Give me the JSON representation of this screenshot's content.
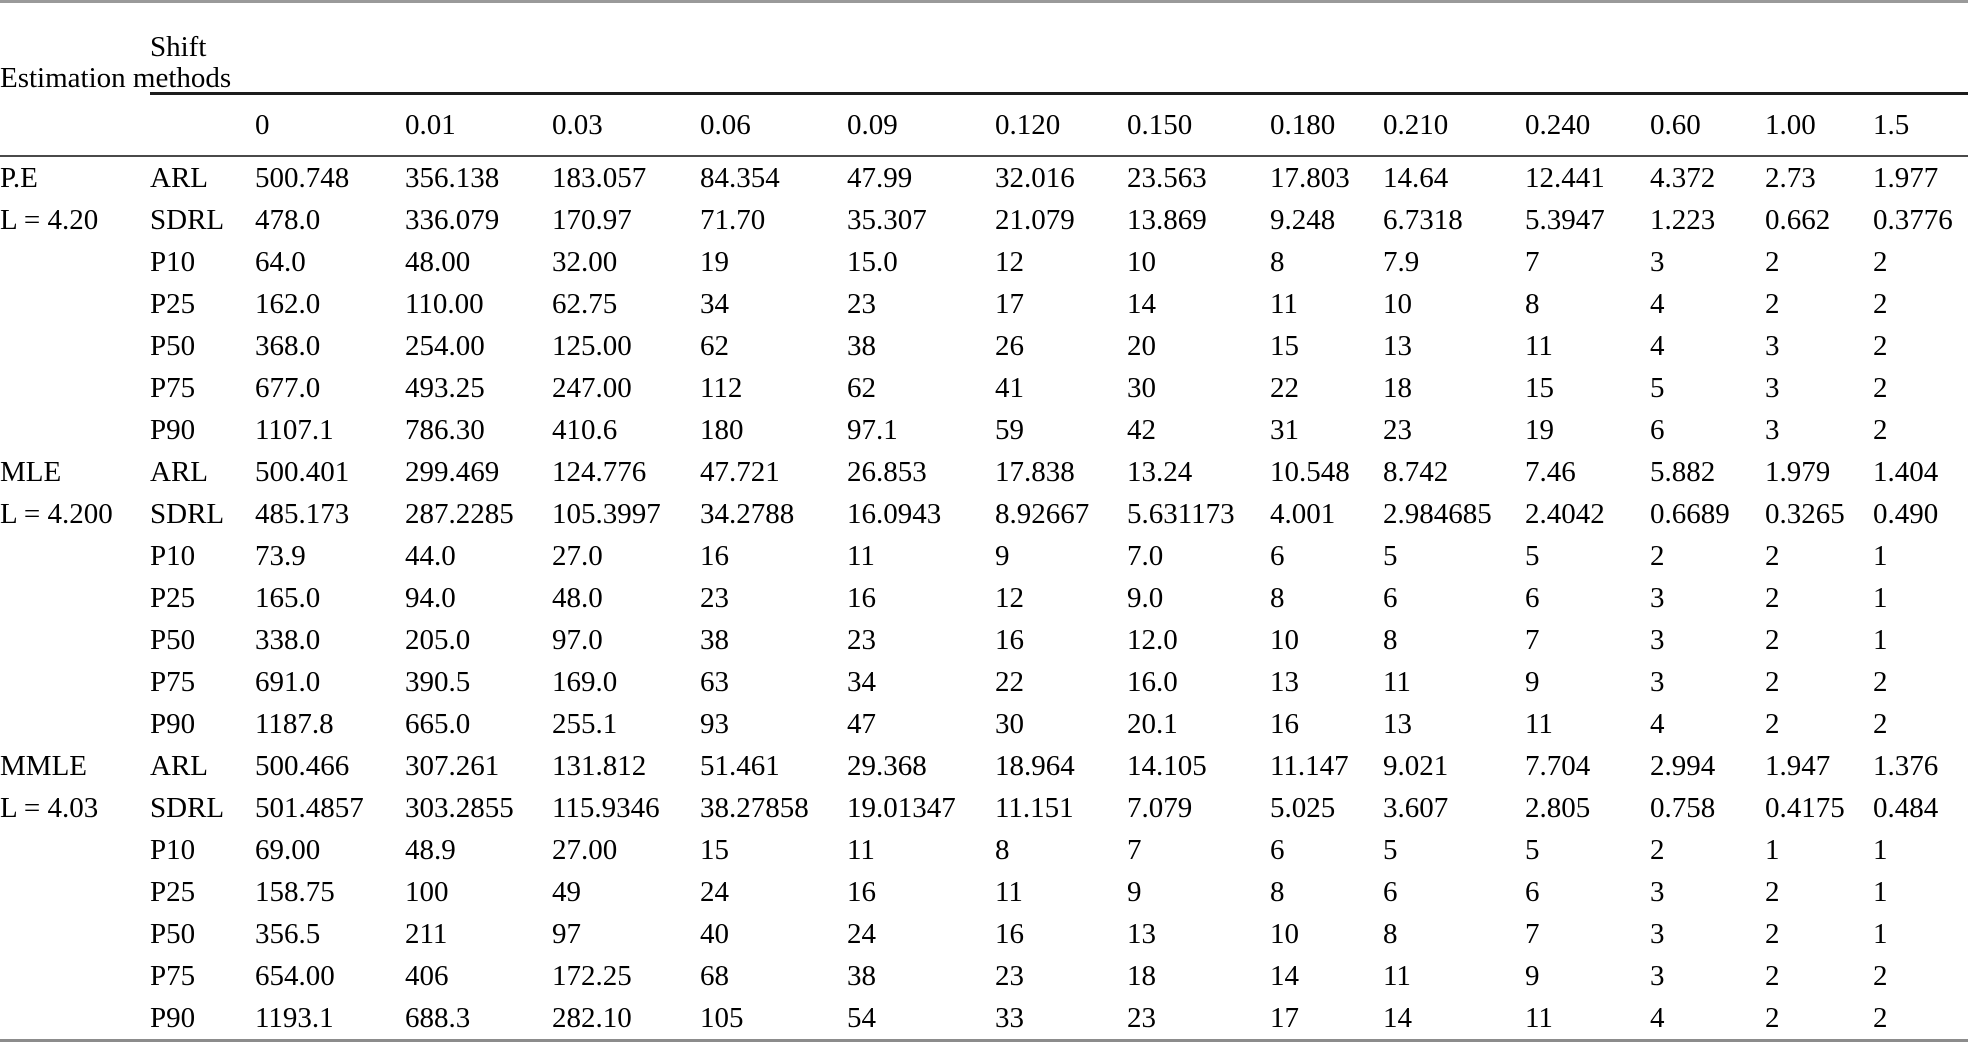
{
  "table": {
    "corner_header": "Estimation methods",
    "span_header": "Shift",
    "shift_columns": [
      "0",
      "0.01",
      "0.03",
      "0.06",
      "0.09",
      "0.120",
      "0.150",
      "0.180",
      "0.210",
      "0.240",
      "0.60",
      "1.00",
      "1.5"
    ],
    "groups": [
      {
        "method": "P.E",
        "limit_label": "L = 4.20",
        "rows": [
          {
            "stat": "ARL",
            "values": [
              "500.748",
              "356.138",
              "183.057",
              "84.354",
              "47.99",
              "32.016",
              "23.563",
              "17.803",
              "14.64",
              "12.441",
              "4.372",
              "2.73",
              "1.977"
            ]
          },
          {
            "stat": "SDRL",
            "values": [
              "478.0",
              "336.079",
              "170.97",
              "71.70",
              "35.307",
              "21.079",
              "13.869",
              "9.248",
              "6.7318",
              "5.3947",
              "1.223",
              "0.662",
              "0.3776"
            ]
          },
          {
            "stat": "P10",
            "values": [
              "64.0",
              "48.00",
              "32.00",
              "19",
              "15.0",
              "12",
              "10",
              "8",
              "7.9",
              "7",
              "3",
              "2",
              "2"
            ]
          },
          {
            "stat": "P25",
            "values": [
              "162.0",
              "110.00",
              "62.75",
              "34",
              "23",
              "17",
              "14",
              "11",
              "10",
              "8",
              "4",
              "2",
              "2"
            ]
          },
          {
            "stat": "P50",
            "values": [
              "368.0",
              "254.00",
              "125.00",
              "62",
              "38",
              "26",
              "20",
              "15",
              "13",
              "11",
              "4",
              "3",
              "2"
            ]
          },
          {
            "stat": "P75",
            "values": [
              "677.0",
              "493.25",
              "247.00",
              "112",
              "62",
              "41",
              "30",
              "22",
              "18",
              "15",
              "5",
              "3",
              "2"
            ]
          },
          {
            "stat": "P90",
            "values": [
              "1107.1",
              "786.30",
              "410.6",
              "180",
              "97.1",
              "59",
              "42",
              "31",
              "23",
              "19",
              "6",
              "3",
              "2"
            ]
          }
        ]
      },
      {
        "method": "MLE",
        "limit_label": "L = 4.200",
        "rows": [
          {
            "stat": "ARL",
            "values": [
              "500.401",
              "299.469",
              "124.776",
              "47.721",
              "26.853",
              "17.838",
              "13.24",
              "10.548",
              "8.742",
              "7.46",
              "5.882",
              "1.979",
              "1.404"
            ]
          },
          {
            "stat": "SDRL",
            "values": [
              "485.173",
              "287.2285",
              "105.3997",
              "34.2788",
              "16.0943",
              "8.92667",
              "5.631173",
              "4.001",
              "2.984685",
              "2.4042",
              "0.6689",
              "0.3265",
              "0.490"
            ]
          },
          {
            "stat": "P10",
            "values": [
              "73.9",
              "44.0",
              "27.0",
              "16",
              "11",
              "9",
              "7.0",
              "6",
              "5",
              "5",
              "2",
              "2",
              "1"
            ]
          },
          {
            "stat": "P25",
            "values": [
              "165.0",
              "94.0",
              "48.0",
              "23",
              "16",
              "12",
              "9.0",
              "8",
              "6",
              "6",
              "3",
              "2",
              "1"
            ]
          },
          {
            "stat": "P50",
            "values": [
              "338.0",
              "205.0",
              "97.0",
              "38",
              "23",
              "16",
              "12.0",
              "10",
              "8",
              "7",
              "3",
              "2",
              "1"
            ]
          },
          {
            "stat": "P75",
            "values": [
              "691.0",
              "390.5",
              "169.0",
              "63",
              "34",
              "22",
              "16.0",
              "13",
              "11",
              "9",
              "3",
              "2",
              "2"
            ]
          },
          {
            "stat": "P90",
            "values": [
              "1187.8",
              "665.0",
              "255.1",
              "93",
              "47",
              "30",
              "20.1",
              "16",
              "13",
              "11",
              "4",
              "2",
              "2"
            ]
          }
        ]
      },
      {
        "method": "MMLE",
        "limit_label": "L = 4.03",
        "rows": [
          {
            "stat": "ARL",
            "values": [
              "500.466",
              "307.261",
              "131.812",
              "51.461",
              "29.368",
              "18.964",
              "14.105",
              "11.147",
              "9.021",
              "7.704",
              "2.994",
              "1.947",
              "1.376"
            ]
          },
          {
            "stat": "SDRL",
            "values": [
              "501.4857",
              "303.2855",
              "115.9346",
              "38.27858",
              "19.01347",
              "11.151",
              "7.079",
              "5.025",
              "3.607",
              "2.805",
              "0.758",
              "0.4175",
              "0.484"
            ]
          },
          {
            "stat": "P10",
            "values": [
              "69.00",
              "48.9",
              "27.00",
              "15",
              "11",
              "8",
              "7",
              "6",
              "5",
              "5",
              "2",
              "1",
              "1"
            ]
          },
          {
            "stat": "P25",
            "values": [
              "158.75",
              "100",
              "49",
              "24",
              "16",
              "11",
              "9",
              "8",
              "6",
              "6",
              "3",
              "2",
              "1"
            ]
          },
          {
            "stat": "P50",
            "values": [
              "356.5",
              "211",
              "97",
              "40",
              "24",
              "16",
              "13",
              "10",
              "8",
              "7",
              "3",
              "2",
              "1"
            ]
          },
          {
            "stat": "P75",
            "values": [
              "654.00",
              "406",
              "172.25",
              "68",
              "38",
              "23",
              "18",
              "14",
              "11",
              "9",
              "3",
              "2",
              "2"
            ]
          },
          {
            "stat": "P90",
            "values": [
              "1193.1",
              "688.3",
              "282.10",
              "105",
              "54",
              "33",
              "23",
              "17",
              "14",
              "11",
              "4",
              "2",
              "2"
            ]
          }
        ]
      }
    ]
  }
}
